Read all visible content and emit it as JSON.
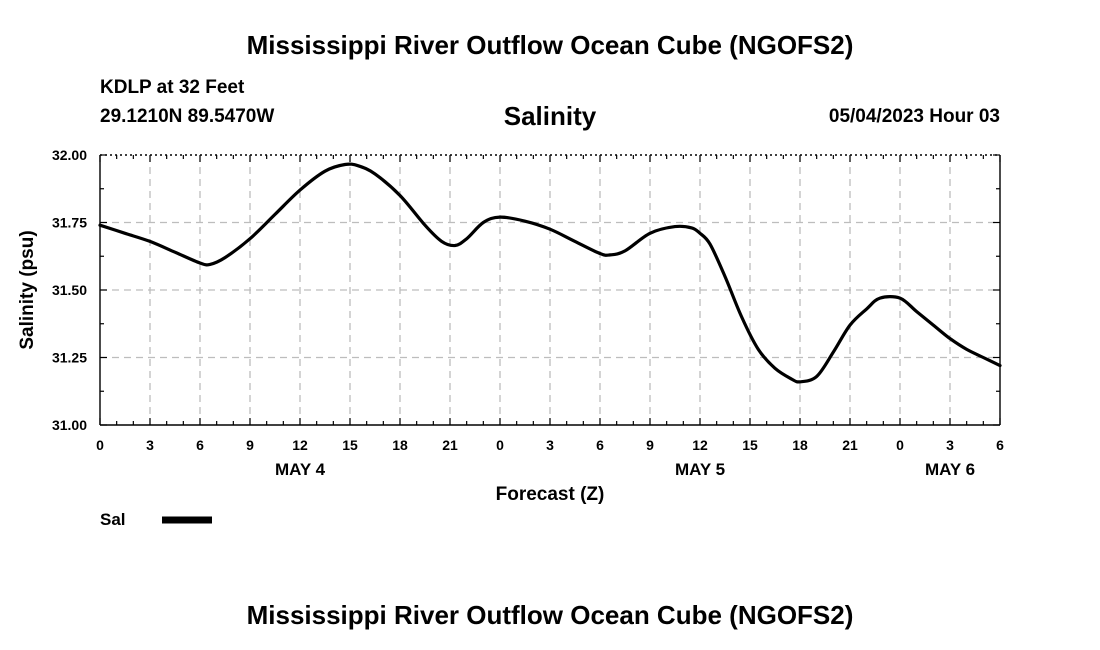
{
  "header": {
    "title": "Mississippi River Outflow Ocean Cube (NGOFS2)",
    "station": "KDLP at 32 Feet",
    "coordinates": "29.1210N  89.5470W",
    "datetime": "05/04/2023 Hour 03"
  },
  "footer": {
    "title": "Mississippi River Outflow Ocean Cube (NGOFS2)"
  },
  "chart_data": {
    "type": "line",
    "title": "Salinity",
    "xlabel": "Forecast (Z)",
    "ylabel": "Salinity (psu)",
    "xlim": [
      0,
      54
    ],
    "ylim": [
      31.0,
      32.0
    ],
    "y_ticks": [
      "31.00",
      "31.25",
      "31.50",
      "31.75",
      "32.00"
    ],
    "x_tick_labels": [
      "0",
      "3",
      "6",
      "9",
      "12",
      "15",
      "18",
      "21",
      "0",
      "3",
      "6",
      "9",
      "12",
      "15",
      "18",
      "21",
      "0",
      "3",
      "6"
    ],
    "date_labels": [
      {
        "label": "MAY 4",
        "at_hour": 12
      },
      {
        "label": "MAY 5",
        "at_hour": 36
      },
      {
        "label": "MAY 6",
        "at_hour": 51
      }
    ],
    "grid": true,
    "legend_position": "bottom-left",
    "series": [
      {
        "name": "Sal",
        "color": "#000000",
        "x": [
          0,
          1.5,
          3,
          4.5,
          6,
          6.6,
          7.5,
          9,
          10.5,
          12,
          13.5,
          14.7,
          15.5,
          16.5,
          18,
          19.5,
          20.5,
          21.3,
          22,
          23,
          24,
          25.5,
          27,
          28.5,
          30,
          30.6,
          31.5,
          33,
          34.5,
          35.5,
          36,
          36.6,
          37.5,
          38.5,
          39.5,
          40.5,
          41.5,
          42,
          43,
          44,
          45,
          46,
          46.8,
          48,
          49,
          50,
          51,
          52,
          53,
          54
        ],
        "y": [
          31.74,
          31.71,
          31.68,
          31.64,
          31.6,
          31.595,
          31.62,
          31.69,
          31.78,
          31.87,
          31.94,
          31.965,
          31.96,
          31.93,
          31.85,
          31.74,
          31.68,
          31.665,
          31.69,
          31.75,
          31.77,
          31.755,
          31.725,
          31.68,
          31.635,
          31.63,
          31.645,
          31.71,
          31.735,
          31.73,
          31.71,
          31.67,
          31.55,
          31.4,
          31.28,
          31.21,
          31.17,
          31.16,
          31.18,
          31.27,
          31.37,
          31.43,
          31.47,
          31.47,
          31.42,
          31.37,
          31.32,
          31.28,
          31.25,
          31.22
        ]
      }
    ]
  }
}
